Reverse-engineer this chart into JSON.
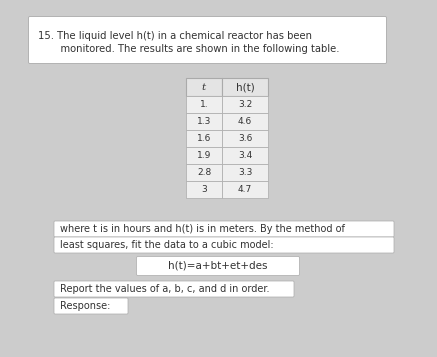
{
  "title_line1": "15. The liquid level h(t) in a chemical reactor has been",
  "title_line2": "    monitored. The results are shown in the following table.",
  "table_t": [
    "1.",
    "1.3",
    "1.6",
    "1.9",
    "2.8",
    "3"
  ],
  "table_ht": [
    "3.2",
    "4.6",
    "3.6",
    "3.4",
    "3.3",
    "4.7"
  ],
  "col_headers": [
    "t",
    "h(t)"
  ],
  "desc_text1": "where t is in hours and h(t) is in meters. By the method of",
  "desc_text2": "least squares, fit the data to a cubic model:",
  "formula_text": "h(t)=a+bt+et+des",
  "report_text": "Report the values of a, b, c, and d in order.",
  "response_text": "Response:",
  "bg_color": "#cccccc",
  "box_color": "#ffffff",
  "table_header_bg": "#e4e4e4",
  "table_cell_bg": "#efefef",
  "table_border_color": "#aaaaaa",
  "text_color": "#333333",
  "font_size_title": 7.2,
  "font_size_table": 6.5,
  "font_size_body": 7.0,
  "font_size_formula": 7.5
}
